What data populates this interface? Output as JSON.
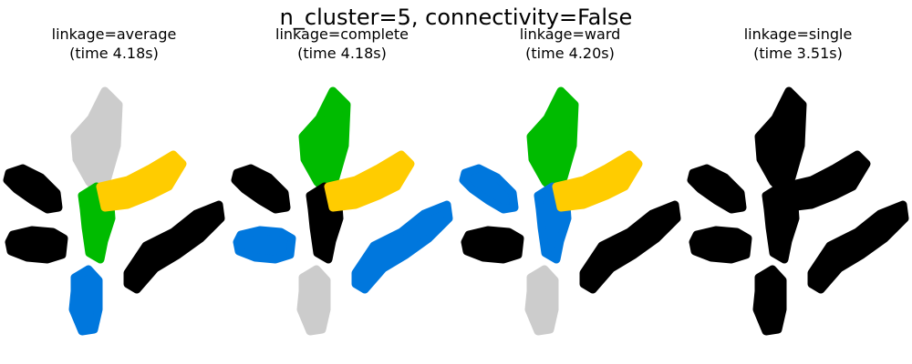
{
  "figure": {
    "suptitle": "n_cluster=5, connectivity=False"
  },
  "colors": {
    "blue": "#0077dd",
    "green": "#00bb00",
    "yellow": "#ffcc00",
    "gray": "#cccccc",
    "black": "#000000"
  },
  "chart_data": [
    {
      "type": "scatter",
      "title_line1": "linkage=average",
      "title_line2": "(time 4.18s)",
      "axes": "off",
      "cluster_colors": {
        "top_arm": "gray",
        "center_left_arm": "green",
        "right_upper_arm": "yellow",
        "left_top_blob": "black",
        "left_mid_blob": "black",
        "bottom_blob": "blue",
        "right_arm": "black"
      }
    },
    {
      "type": "scatter",
      "title_line1": "linkage=complete",
      "title_line2": "(time 4.18s)",
      "axes": "off",
      "cluster_colors": {
        "top_arm": "green",
        "center_left_arm": "black",
        "right_upper_arm": "yellow",
        "left_top_blob": "black",
        "left_mid_blob": "blue",
        "bottom_blob": "gray",
        "right_arm": "blue"
      }
    },
    {
      "type": "scatter",
      "title_line1": "linkage=ward",
      "title_line2": "(time 4.20s)",
      "axes": "off",
      "cluster_colors": {
        "top_arm": "green",
        "center_left_arm": "blue",
        "right_upper_arm": "yellow",
        "left_top_blob": "blue",
        "left_mid_blob": "black",
        "bottom_blob": "gray",
        "right_arm": "black"
      }
    },
    {
      "type": "scatter",
      "title_line1": "linkage=single",
      "title_line2": "(time 3.51s)",
      "axes": "off",
      "cluster_colors": {
        "top_arm": "black",
        "center_left_arm": "black",
        "right_upper_arm": "black",
        "left_top_blob": "black",
        "left_mid_blob": "black",
        "bottom_blob": "black",
        "right_arm": "black"
      }
    }
  ]
}
